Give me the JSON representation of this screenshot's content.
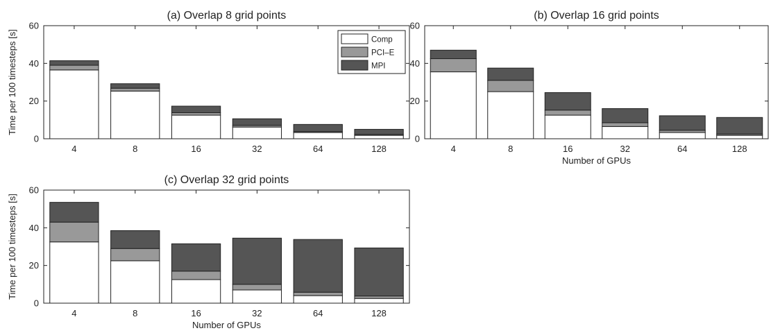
{
  "chart_data": [
    {
      "type": "bar",
      "stacked": true,
      "title": "(a) Overlap 8 grid points",
      "xlabel": "",
      "ylabel": "Time per 100 timesteps [s]",
      "ylim": [
        0,
        60
      ],
      "yticks": [
        0,
        20,
        40,
        60
      ],
      "categories": [
        "4",
        "8",
        "16",
        "32",
        "64",
        "128"
      ],
      "series": [
        {
          "name": "Comp",
          "color": "#ffffff",
          "values": [
            36.5,
            25.3,
            12.5,
            6.2,
            3.3,
            1.8
          ]
        },
        {
          "name": "PCI–E",
          "color": "#999999",
          "values": [
            2.5,
            1.5,
            1.3,
            0.9,
            0.5,
            0.5
          ]
        },
        {
          "name": "MPI",
          "color": "#555555",
          "values": [
            2.4,
            2.4,
            3.5,
            3.5,
            3.8,
            2.7
          ]
        }
      ],
      "legend": {
        "position": "top-right",
        "entries": [
          "Comp",
          "PCI–E",
          "MPI"
        ]
      },
      "grid": false
    },
    {
      "type": "bar",
      "stacked": true,
      "title": "(b) Overlap 16 grid points",
      "xlabel": "Number of GPUs",
      "ylabel": "",
      "ylim": [
        0,
        60
      ],
      "yticks": [
        0,
        20,
        40,
        60
      ],
      "categories": [
        "4",
        "8",
        "16",
        "32",
        "64",
        "128"
      ],
      "series": [
        {
          "name": "Comp",
          "color": "#ffffff",
          "values": [
            35.5,
            25.0,
            12.5,
            6.5,
            3.3,
            1.8
          ]
        },
        {
          "name": "PCI–E",
          "color": "#999999",
          "values": [
            7.0,
            6.0,
            2.7,
            2.0,
            1.2,
            0.7
          ]
        },
        {
          "name": "MPI",
          "color": "#555555",
          "values": [
            4.5,
            6.5,
            9.3,
            7.5,
            7.7,
            8.8
          ]
        }
      ],
      "grid": false
    },
    {
      "type": "bar",
      "stacked": true,
      "title": "(c) Overlap 32 grid points",
      "xlabel": "Number of GPUs",
      "ylabel": "Time per 100 timesteps [s]",
      "ylim": [
        0,
        60
      ],
      "yticks": [
        0,
        20,
        40,
        60
      ],
      "categories": [
        "4",
        "8",
        "16",
        "32",
        "64",
        "128"
      ],
      "series": [
        {
          "name": "Comp",
          "color": "#ffffff",
          "values": [
            32.5,
            22.5,
            12.5,
            7.0,
            4.0,
            2.5
          ]
        },
        {
          "name": "PCI–E",
          "color": "#999999",
          "values": [
            10.5,
            6.5,
            4.5,
            3.0,
            1.8,
            1.3
          ]
        },
        {
          "name": "MPI",
          "color": "#555555",
          "values": [
            10.5,
            9.5,
            14.5,
            24.5,
            28.0,
            25.5
          ]
        }
      ],
      "grid": false
    }
  ]
}
